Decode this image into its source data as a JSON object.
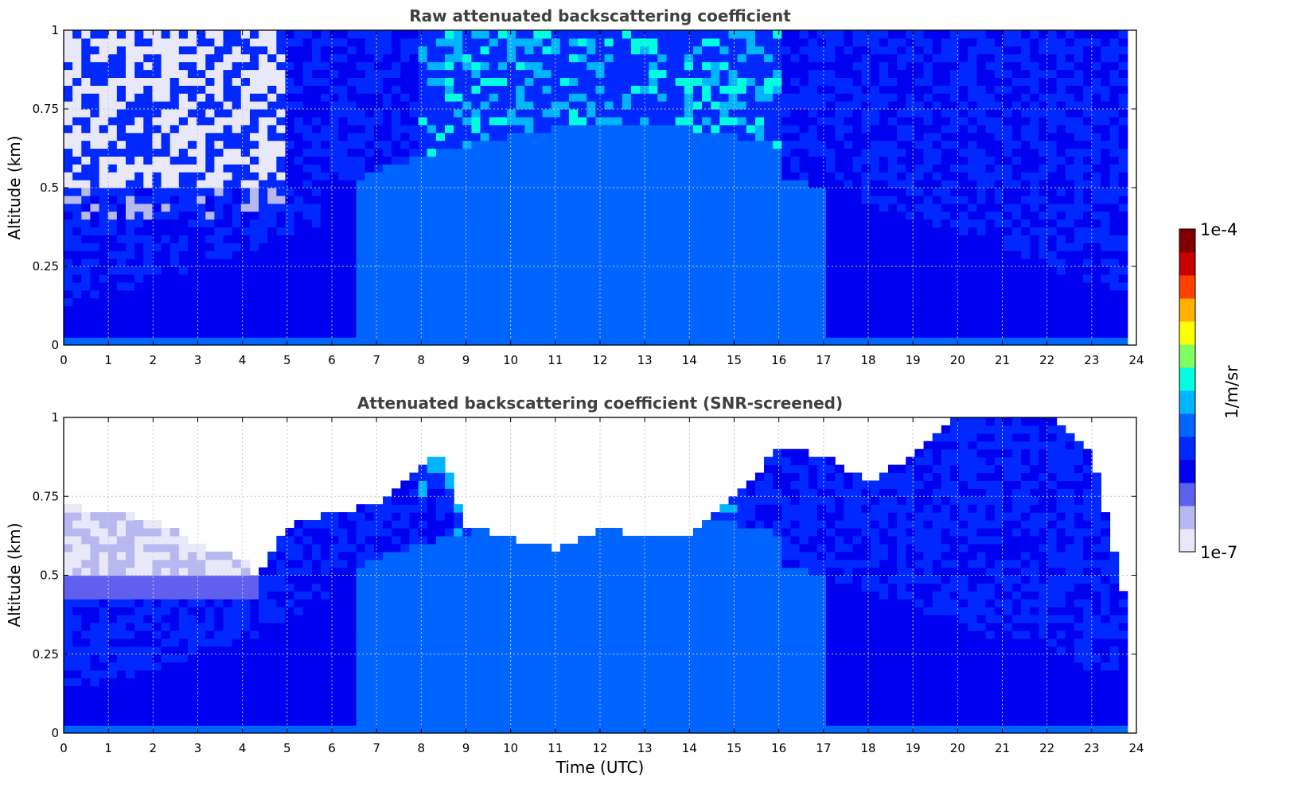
{
  "colors": {
    "colormap": [
      "#e8e8f8",
      "#b8b8f0",
      "#6060ee",
      "#0000f0",
      "#0028ff",
      "#0064ff",
      "#00b4ff",
      "#00ffe0",
      "#7fff60",
      "#ffff00",
      "#ffb000",
      "#ff4000",
      "#c80000",
      "#800000"
    ],
    "grid": "#c8c8c8"
  },
  "chart_data": [
    {
      "type": "heatmap",
      "title": "Raw attenuated backscattering coefficient",
      "xlabel": "",
      "ylabel": "Altitude (km)",
      "xlim": [
        0,
        24
      ],
      "ylim": [
        0,
        1
      ],
      "x_ticks": [
        "0",
        "1",
        "2",
        "3",
        "4",
        "5",
        "6",
        "7",
        "8",
        "9",
        "10",
        "11",
        "12",
        "13",
        "14",
        "15",
        "16",
        "17",
        "18",
        "19",
        "20",
        "21",
        "22",
        "23",
        "24"
      ],
      "y_ticks": [
        "0",
        "0.25",
        "0.5",
        "0.75",
        "1"
      ],
      "grid": true,
      "data_end_time": 23.8,
      "screened": false
    },
    {
      "type": "heatmap",
      "title": "Attenuated backscattering coefficient (SNR-screened)",
      "xlabel": "Time (UTC)",
      "ylabel": "Altitude (km)",
      "xlim": [
        0,
        24
      ],
      "ylim": [
        0,
        1
      ],
      "x_ticks": [
        "0",
        "1",
        "2",
        "3",
        "4",
        "5",
        "6",
        "7",
        "8",
        "9",
        "10",
        "11",
        "12",
        "13",
        "14",
        "15",
        "16",
        "17",
        "18",
        "19",
        "20",
        "21",
        "22",
        "23",
        "24"
      ],
      "y_ticks": [
        "0",
        "0.25",
        "0.5",
        "0.75",
        "1"
      ],
      "grid": true,
      "data_end_time": 23.8,
      "screened": true,
      "signal_top_km": [
        [
          0,
          0.72
        ],
        [
          1,
          0.7
        ],
        [
          2,
          0.68
        ],
        [
          3,
          0.6
        ],
        [
          4,
          0.55
        ],
        [
          4.3,
          0.5
        ],
        [
          5,
          0.65
        ],
        [
          6,
          0.7
        ],
        [
          7,
          0.72
        ],
        [
          8,
          0.85
        ],
        [
          8.5,
          0.88
        ],
        [
          9,
          0.66
        ],
        [
          10,
          0.62
        ],
        [
          11,
          0.58
        ],
        [
          12,
          0.65
        ],
        [
          13,
          0.62
        ],
        [
          14,
          0.63
        ],
        [
          15,
          0.75
        ],
        [
          16,
          0.9
        ],
        [
          17,
          0.88
        ],
        [
          18,
          0.8
        ],
        [
          19,
          0.88
        ],
        [
          20,
          1.0
        ],
        [
          21,
          1.0
        ],
        [
          22,
          1.0
        ],
        [
          23,
          0.9
        ],
        [
          23.8,
          0.4
        ]
      ]
    }
  ],
  "colorbar": {
    "max_label": "1e-4",
    "min_label": "1e-7",
    "unit_label": "1/m/sr",
    "range": [
      1e-07,
      0.0001
    ],
    "scale": "log"
  }
}
